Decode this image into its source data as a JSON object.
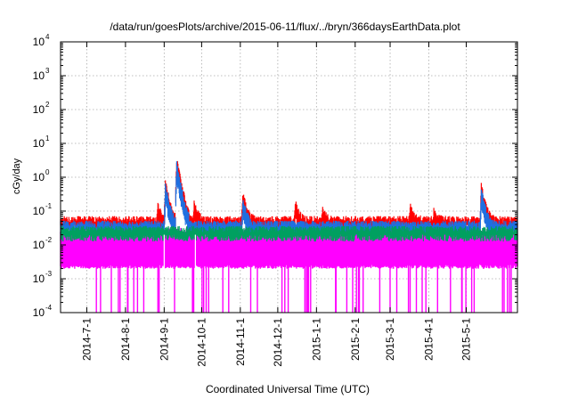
{
  "chart_data": {
    "type": "line",
    "title": "/data/run/goesPlots/archive/2015-06-11/flux/../bryn/366daysEarthData.plot",
    "xlabel": "Coordinated Universal Time (UTC)",
    "ylabel": "cGy/day",
    "x_range": [
      "2014-06-10",
      "2015-06-11"
    ],
    "y_scale": "log",
    "ylim": [
      0.0001,
      10000
    ],
    "y_ticks": [
      {
        "exp": -4,
        "value": 0.0001
      },
      {
        "exp": -3,
        "value": 0.001
      },
      {
        "exp": -2,
        "value": 0.01
      },
      {
        "exp": -1,
        "value": 0.1
      },
      {
        "exp": 0,
        "value": 1
      },
      {
        "exp": 1,
        "value": 10
      },
      {
        "exp": 2,
        "value": 100
      },
      {
        "exp": 3,
        "value": 1000
      },
      {
        "exp": 4,
        "value": 10000
      }
    ],
    "y_tick_base": "10",
    "x_ticks": [
      {
        "label": "2014-7-1",
        "date": "2014-07-01"
      },
      {
        "label": "2014-8-1",
        "date": "2014-08-01"
      },
      {
        "label": "2014-9-1",
        "date": "2014-09-01"
      },
      {
        "label": "2014-10-1",
        "date": "2014-10-01"
      },
      {
        "label": "2014-11-1",
        "date": "2014-11-01"
      },
      {
        "label": "2014-12-1",
        "date": "2014-12-01"
      },
      {
        "label": "2015-1-1",
        "date": "2015-01-01"
      },
      {
        "label": "2015-2-1",
        "date": "2015-02-01"
      },
      {
        "label": "2015-3-1",
        "date": "2015-03-01"
      },
      {
        "label": "2015-4-1",
        "date": "2015-04-01"
      },
      {
        "label": "2015-5-1",
        "date": "2015-05-01"
      }
    ],
    "grid": true,
    "series": [
      {
        "color": "#ff0000",
        "baseline": 0.055,
        "peaks": [
          {
            "date": "2014-08-27",
            "value": 0.15
          },
          {
            "date": "2014-09-02",
            "value": 0.7
          },
          {
            "date": "2014-09-11",
            "value": 3.2
          },
          {
            "date": "2014-09-15",
            "value": 0.4
          },
          {
            "date": "2014-09-25",
            "value": 0.17
          },
          {
            "date": "2014-11-03",
            "value": 0.32
          },
          {
            "date": "2014-12-15",
            "value": 0.18
          },
          {
            "date": "2015-01-06",
            "value": 0.12
          },
          {
            "date": "2015-03-17",
            "value": 0.15
          },
          {
            "date": "2015-04-05",
            "value": 0.1
          },
          {
            "date": "2015-05-13",
            "value": 0.55
          }
        ]
      },
      {
        "color": "#1f6fe0",
        "baseline": 0.04,
        "peaks": [
          {
            "date": "2014-09-02",
            "value": 0.55
          },
          {
            "date": "2014-09-11",
            "value": 2.4
          },
          {
            "date": "2014-11-03",
            "value": 0.22
          },
          {
            "date": "2015-05-13",
            "value": 0.4
          }
        ]
      },
      {
        "color": "#00a060",
        "baseline": 0.028,
        "peaks": []
      },
      {
        "color": "#ff00ff",
        "baseline": 0.02,
        "floor": 0.0022,
        "peaks": []
      }
    ]
  }
}
